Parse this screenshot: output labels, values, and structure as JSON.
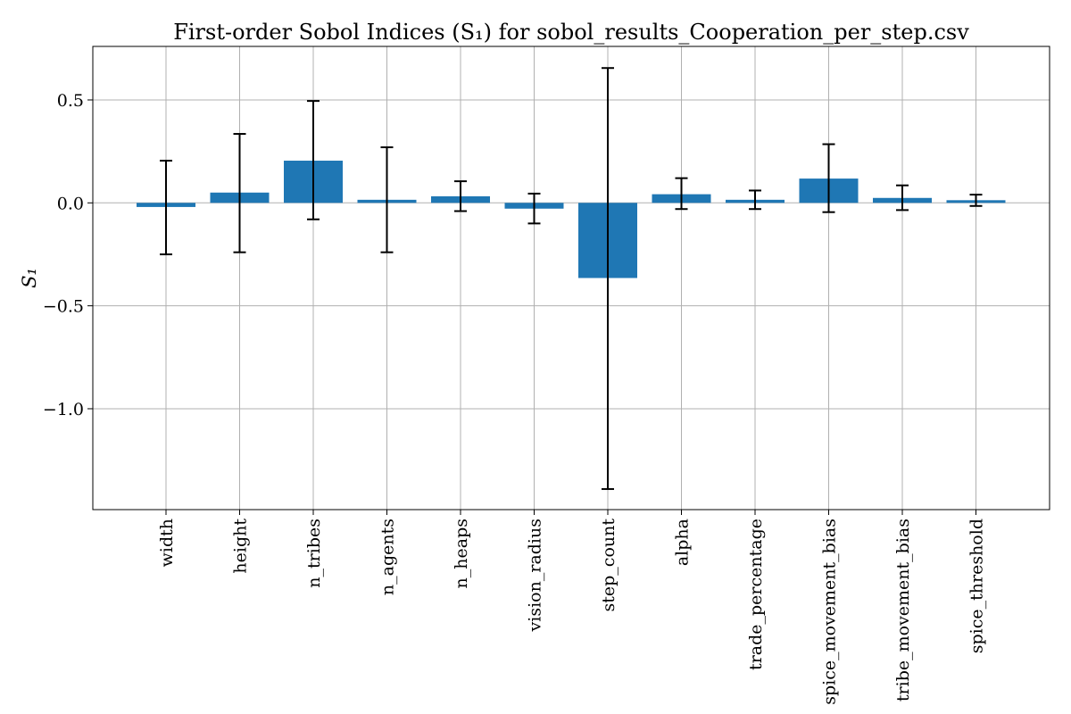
{
  "chart_data": {
    "type": "bar",
    "title": "First-order Sobol Indices (S₁) for sobol_results_Cooperation_per_step.csv",
    "ylabel": "S₁",
    "xlabel": "",
    "categories": [
      "width",
      "height",
      "n_tribes",
      "n_agents",
      "n_heaps",
      "vision_radius",
      "step_count",
      "alpha",
      "trade_percentage",
      "spice_movement_bias",
      "tribe_movement_bias",
      "spice_threshold"
    ],
    "values": [
      -0.02,
      0.05,
      0.205,
      0.015,
      0.032,
      -0.028,
      -0.365,
      0.042,
      0.015,
      0.118,
      0.024,
      0.013
    ],
    "error_low": [
      -0.25,
      -0.24,
      -0.08,
      -0.24,
      -0.04,
      -0.1,
      -1.39,
      -0.03,
      -0.03,
      -0.045,
      -0.035,
      -0.015
    ],
    "error_high": [
      0.205,
      0.335,
      0.495,
      0.27,
      0.105,
      0.045,
      0.655,
      0.12,
      0.06,
      0.285,
      0.085,
      0.04
    ],
    "yticks": [
      0.5,
      0.0,
      -0.5,
      -1.0
    ],
    "ytick_labels": [
      "0.5",
      "0.0",
      "−0.5",
      "−1.0"
    ],
    "ylim": [
      -1.49,
      0.76
    ],
    "grid": true,
    "bar_color": "#1f77b4",
    "error_color": "#000000"
  }
}
